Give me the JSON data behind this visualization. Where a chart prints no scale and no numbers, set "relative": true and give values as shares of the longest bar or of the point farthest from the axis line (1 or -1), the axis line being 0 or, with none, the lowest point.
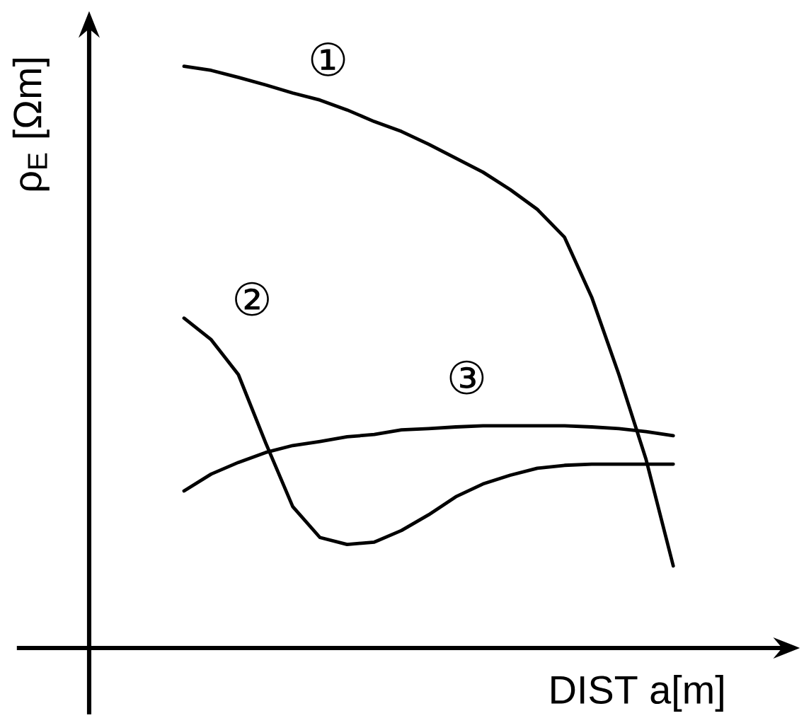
{
  "chart_data": {
    "type": "line",
    "relative": true,
    "xlabel": "DIST a[m]",
    "ylabel": "ρ$_{E}$ [Ωm]",
    "categories": [
      null,
      null,
      null,
      null,
      null,
      null,
      null,
      null,
      null,
      null,
      null,
      null,
      null,
      null,
      null,
      null,
      null,
      null,
      null
    ],
    "series": [
      {
        "name": "①",
        "color": "#000000",
        "values": [
          1.0,
          0.993,
          0.981,
          0.968,
          0.954,
          0.942,
          0.925,
          0.905,
          0.888,
          0.866,
          0.842,
          0.818,
          0.788,
          0.754,
          0.706,
          0.603,
          0.47,
          0.324,
          0.141
        ]
      },
      {
        "name": "②",
        "color": "#000000",
        "values": [
          0.567,
          0.53,
          0.47,
          0.353,
          0.243,
          0.19,
          0.178,
          0.182,
          0.202,
          0.229,
          0.26,
          0.282,
          0.297,
          0.309,
          0.314,
          0.316,
          0.316,
          0.316,
          0.316
        ]
      },
      {
        "name": "③",
        "color": "#000000",
        "values": [
          0.27,
          0.299,
          0.319,
          0.336,
          0.348,
          0.355,
          0.363,
          0.367,
          0.375,
          0.377,
          0.38,
          0.382,
          0.382,
          0.382,
          0.382,
          0.38,
          0.377,
          0.372,
          0.365
        ]
      }
    ]
  }
}
